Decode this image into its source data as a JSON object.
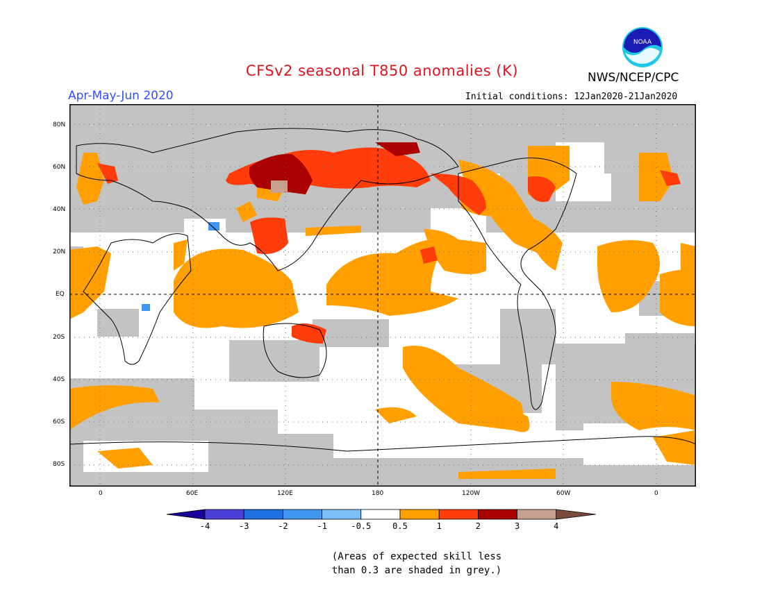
{
  "header": {
    "title": "CFSv2 seasonal T850 anomalies (K)",
    "period": "Apr-May-Jun 2020",
    "agency": "NWS/NCEP/CPC",
    "initial_conditions": "Initial conditions: 12Jan2020-21Jan2020",
    "logo_text": "NOAA"
  },
  "axes": {
    "lat_labels": [
      "80N",
      "60N",
      "40N",
      "20N",
      "EQ",
      "20S",
      "40S",
      "60S",
      "80S"
    ],
    "lon_labels": [
      "0",
      "60E",
      "120E",
      "180",
      "120W",
      "60W",
      "0"
    ]
  },
  "legend": {
    "labels": [
      "-4",
      "-3",
      "-2",
      "-1",
      "-0.5",
      "0.5",
      "1",
      "2",
      "3",
      "4"
    ],
    "colors": [
      "#1a0099",
      "#4b3fd9",
      "#1f6fe0",
      "#4196f0",
      "#7dbff5",
      "#ffffff",
      "#ffa000",
      "#ff3c0a",
      "#aa0000",
      "#c8a090",
      "#7a4a3a"
    ]
  },
  "colors": {
    "grey_mask": "#c3c3c3",
    "anom_05": "#ffa000",
    "anom_1": "#ff3c0a",
    "anom_2": "#aa0000",
    "anom_3": "#c8a090",
    "anom_neg05": "#7dbff5",
    "title": "#e0141e",
    "period": "#3050ff"
  },
  "footnote": {
    "line1": "(Areas of expected skill less",
    "line2": "than 0.3 are shaded in grey.)"
  }
}
